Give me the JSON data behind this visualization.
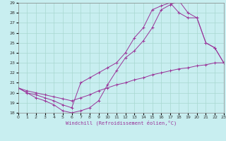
{
  "xlabel": "Windchill (Refroidissement éolien,°C)",
  "xlim": [
    0,
    23
  ],
  "ylim": [
    18,
    29
  ],
  "xticks": [
    0,
    1,
    2,
    3,
    4,
    5,
    6,
    7,
    8,
    9,
    10,
    11,
    12,
    13,
    14,
    15,
    16,
    17,
    18,
    19,
    20,
    21,
    22,
    23
  ],
  "yticks": [
    18,
    19,
    20,
    21,
    22,
    23,
    24,
    25,
    26,
    27,
    28,
    29
  ],
  "bg_color": "#c8eef0",
  "line_color": "#993399",
  "grid_color": "#a8d8d0",
  "line1_x": [
    0,
    1,
    2,
    3,
    4,
    5,
    6,
    7,
    8,
    9,
    10,
    11,
    12,
    13,
    14,
    15,
    16,
    17,
    18,
    19,
    20,
    21,
    22,
    23
  ],
  "line1_y": [
    20.5,
    20.0,
    19.5,
    19.2,
    18.8,
    18.2,
    18.0,
    18.2,
    18.5,
    19.2,
    20.8,
    22.2,
    23.5,
    24.2,
    25.2,
    26.5,
    28.3,
    28.8,
    29.2,
    28.0,
    27.5,
    25.0,
    24.5,
    23.0
  ],
  "line2_x": [
    0,
    1,
    2,
    3,
    4,
    5,
    6,
    7,
    8,
    9,
    10,
    11,
    12,
    13,
    14,
    15,
    16,
    17,
    18,
    19,
    20,
    21,
    22,
    23
  ],
  "line2_y": [
    20.5,
    20.0,
    19.8,
    19.5,
    19.2,
    18.8,
    18.5,
    21.0,
    21.5,
    22.0,
    22.5,
    23.0,
    24.0,
    25.5,
    26.5,
    28.3,
    28.7,
    29.0,
    28.0,
    27.5,
    27.5,
    25.0,
    24.5,
    23.0
  ],
  "line3_x": [
    0,
    1,
    2,
    3,
    4,
    5,
    6,
    7,
    8,
    9,
    10,
    11,
    12,
    13,
    14,
    15,
    16,
    17,
    18,
    19,
    20,
    21,
    22,
    23
  ],
  "line3_y": [
    20.5,
    20.2,
    20.0,
    19.8,
    19.6,
    19.4,
    19.2,
    19.5,
    19.8,
    20.2,
    20.5,
    20.8,
    21.0,
    21.3,
    21.5,
    21.8,
    22.0,
    22.2,
    22.4,
    22.5,
    22.7,
    22.8,
    23.0,
    23.0
  ],
  "figsize": [
    3.2,
    2.0
  ],
  "dpi": 100
}
